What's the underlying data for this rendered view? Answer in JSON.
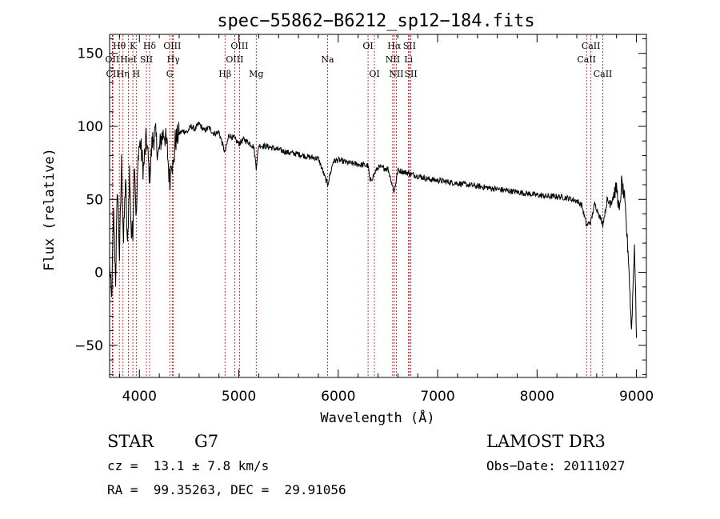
{
  "chart_data": {
    "type": "line",
    "title": "spec−55862−B6212_sp12−184.fits",
    "xlabel": "Wavelength (Å)",
    "ylabel": "Flux (relative)",
    "xlim": [
      3700,
      9100
    ],
    "ylim": [
      -72,
      163
    ],
    "xticks": [
      4000,
      5000,
      6000,
      7000,
      8000,
      9000
    ],
    "xtick_labels": [
      "4000",
      "5000",
      "6000",
      "7000",
      "8000",
      "9000"
    ],
    "yticks": [
      -50,
      0,
      50,
      100,
      150
    ],
    "ytick_labels": [
      "−50",
      "0",
      "50",
      "100",
      "150"
    ],
    "grid": false,
    "series": [
      {
        "name": "spectrum",
        "x": [
          3700,
          3720,
          3740,
          3760,
          3780,
          3800,
          3820,
          3840,
          3860,
          3880,
          3900,
          3920,
          3934,
          3950,
          3968,
          3990,
          4010,
          4040,
          4070,
          4102,
          4130,
          4160,
          4190,
          4220,
          4250,
          4280,
          4305,
          4320,
          4340,
          4360,
          4400,
          4440,
          4480,
          4520,
          4560,
          4600,
          4650,
          4700,
          4750,
          4800,
          4861,
          4900,
          4950,
          5000,
          5050,
          5100,
          5150,
          5175,
          5200,
          5300,
          5400,
          5500,
          5600,
          5700,
          5800,
          5893,
          5950,
          6000,
          6100,
          6200,
          6300,
          6320,
          6400,
          6500,
          6563,
          6600,
          6700,
          6800,
          6900,
          7000,
          7100,
          7200,
          7300,
          7400,
          7500,
          7600,
          7700,
          7800,
          7900,
          8000,
          8100,
          8200,
          8300,
          8400,
          8450,
          8498,
          8542,
          8580,
          8662,
          8700,
          8750,
          8800,
          8830,
          8850,
          8880,
          8900,
          8920,
          8950,
          8980,
          9000
        ],
        "y": [
          5,
          -20,
          40,
          -5,
          60,
          10,
          75,
          20,
          65,
          15,
          70,
          25,
          30,
          80,
          35,
          85,
          88,
          70,
          93,
          65,
          90,
          95,
          80,
          92,
          96,
          85,
          60,
          80,
          70,
          90,
          95,
          97,
          96,
          100,
          98,
          102,
          97,
          99,
          95,
          96,
          82,
          94,
          92,
          88,
          91,
          89,
          86,
          72,
          87,
          86,
          84,
          82,
          81,
          79,
          78,
          60,
          76,
          77,
          75,
          74,
          73,
          62,
          72,
          71,
          55,
          70,
          68,
          66,
          64,
          63,
          62,
          61,
          60,
          59,
          58,
          57,
          56,
          55,
          54,
          53,
          52,
          52,
          51,
          49,
          46,
          32,
          35,
          47,
          33,
          47,
          50,
          58,
          40,
          62,
          50,
          30,
          10,
          -40,
          20,
          -45
        ]
      }
    ],
    "lines": [
      {
        "label": "Hθ",
        "x": 3798,
        "row": 1
      },
      {
        "label": "OII",
        "x": 3727,
        "row": 2
      },
      {
        "label": "CII",
        "x": 3733,
        "row": 3
      },
      {
        "label": "Hη",
        "x": 3835,
        "row": 3
      },
      {
        "label": "HeI",
        "x": 3889,
        "row": 2
      },
      {
        "label": "K",
        "x": 3934,
        "row": 1
      },
      {
        "label": "SII",
        "x": 4070,
        "row": 2
      },
      {
        "label": "H",
        "x": 3968,
        "row": 3
      },
      {
        "label": "Hδ",
        "x": 4102,
        "row": 1
      },
      {
        "label": "OIII",
        "x": 4330,
        "row": 1
      },
      {
        "label": "Hγ",
        "x": 4341,
        "row": 2
      },
      {
        "label": "G",
        "x": 4305,
        "row": 3
      },
      {
        "label": "Hβ",
        "x": 4861,
        "row": 3
      },
      {
        "label": "OIII",
        "x": 5007,
        "row": 1
      },
      {
        "label": "OIII",
        "x": 4959,
        "row": 2
      },
      {
        "label": "Mg",
        "x": 5175,
        "row": 3
      },
      {
        "label": "Na",
        "x": 5893,
        "row": 2
      },
      {
        "label": "OI",
        "x": 6300,
        "row": 1
      },
      {
        "label": "OI",
        "x": 6364,
        "row": 3
      },
      {
        "label": "Hα",
        "x": 6563,
        "row": 1
      },
      {
        "label": "NII",
        "x": 6548,
        "row": 2
      },
      {
        "label": "NII",
        "x": 6584,
        "row": 3
      },
      {
        "label": "SII",
        "x": 6717,
        "row": 1
      },
      {
        "label": "Li",
        "x": 6707,
        "row": 2
      },
      {
        "label": "SII",
        "x": 6731,
        "row": 3
      },
      {
        "label": "CaII",
        "x": 8542,
        "row": 1
      },
      {
        "label": "CaII",
        "x": 8498,
        "row": 2
      },
      {
        "label": "CaII",
        "x": 8662,
        "row": 3
      }
    ]
  },
  "info": {
    "class_label": "STAR",
    "subclass": "G7",
    "survey": "LAMOST DR3",
    "redshift": "cz =  13.1 ± 7.8 km/s",
    "obs_date": "Obs−Date: 20111027",
    "coords": "RA =  99.35263, DEC =  29.91056"
  },
  "colors": {
    "axis": "#000000",
    "spectrum": "#000000",
    "line_marker": "#c00000"
  }
}
